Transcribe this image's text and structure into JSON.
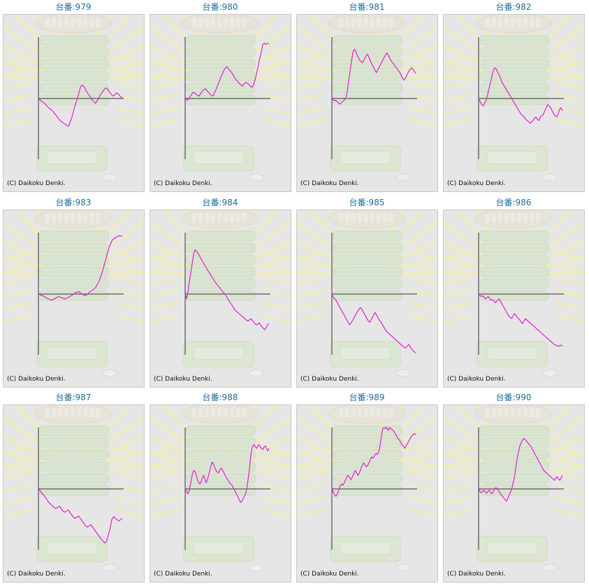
{
  "copyright": "(C) Daikoku Denki.",
  "colors": {
    "line": "#e020d0",
    "axis": "#333333",
    "title": "#1a6e9e",
    "panel_bg": "#e6e6e6"
  },
  "chart_data": [
    {
      "type": "line",
      "title": "台番:979",
      "values": [
        0,
        -2,
        -5,
        -6,
        -9,
        -12,
        -15,
        -17,
        -19,
        -22,
        -26,
        -29,
        -33,
        -36,
        -38,
        -40,
        -42,
        -44,
        -45,
        -38,
        -30,
        -20,
        -10,
        -2,
        8,
        18,
        22,
        20,
        15,
        10,
        6,
        2,
        -2,
        -5,
        -8,
        -4,
        1,
        6,
        10,
        14,
        17,
        16,
        12,
        8,
        5,
        4,
        8,
        9,
        6,
        3,
        1
      ]
    },
    {
      "type": "line",
      "title": "台番:980",
      "values": [
        0,
        -2,
        -2,
        2,
        6,
        10,
        9,
        7,
        5,
        4,
        8,
        12,
        14,
        16,
        13,
        10,
        7,
        5,
        4,
        10,
        15,
        22,
        28,
        35,
        40,
        46,
        50,
        52,
        48,
        45,
        42,
        38,
        33,
        30,
        27,
        24,
        22,
        20,
        24,
        26,
        25,
        23,
        20,
        18,
        22,
        30,
        40,
        52,
        65,
        75,
        88,
        90,
        88,
        90,
        89
      ]
    },
    {
      "type": "line",
      "title": "台番:981",
      "values": [
        0,
        -2,
        -4,
        -3,
        -5,
        -7,
        -9,
        -8,
        -6,
        -4,
        -2,
        0,
        10,
        25,
        40,
        55,
        68,
        78,
        80,
        75,
        70,
        66,
        62,
        60,
        58,
        62,
        66,
        70,
        72,
        68,
        63,
        58,
        54,
        50,
        46,
        42,
        46,
        50,
        54,
        58,
        62,
        66,
        70,
        74,
        72,
        68,
        64,
        60,
        58,
        55,
        52,
        50,
        46,
        44,
        40,
        36,
        32,
        30,
        34,
        38,
        42,
        46,
        48,
        50,
        47,
        44,
        41
      ]
    },
    {
      "type": "line",
      "title": "台番:982",
      "values": [
        0,
        -5,
        -10,
        -12,
        -8,
        -4,
        5,
        15,
        25,
        35,
        45,
        50,
        48,
        42,
        38,
        32,
        26,
        22,
        18,
        14,
        10,
        6,
        2,
        -2,
        -6,
        -10,
        -14,
        -18,
        -22,
        -26,
        -28,
        -30,
        -34,
        -36,
        -38,
        -40,
        -38,
        -36,
        -32,
        -30,
        -34,
        -36,
        -30,
        -28,
        -26,
        -20,
        -15,
        -10,
        -12,
        -15,
        -20,
        -25,
        -28,
        -30,
        -26,
        -18,
        -15,
        -20
      ]
    },
    {
      "type": "line",
      "title": "台番:983",
      "values": [
        0,
        -2,
        -5,
        -8,
        -10,
        -7,
        -4,
        -6,
        -8,
        -5,
        -2,
        2,
        4,
        0,
        -3,
        2,
        6,
        10,
        20,
        35,
        55,
        75,
        88,
        92,
        95,
        94
      ]
    },
    {
      "type": "line",
      "title": "台番:984",
      "values": [
        0,
        -8,
        5,
        20,
        35,
        50,
        65,
        72,
        70,
        66,
        63,
        58,
        54,
        50,
        46,
        42,
        38,
        35,
        31,
        27,
        24,
        20,
        17,
        14,
        11,
        8,
        5,
        2,
        0,
        -4,
        -8,
        -12,
        -15,
        -18,
        -22,
        -26,
        -28,
        -30,
        -32,
        -34,
        -36,
        -38,
        -40,
        -42,
        -44,
        -43,
        -40,
        -42,
        -45,
        -48,
        -50,
        -49,
        -47,
        -50,
        -53,
        -56,
        -58,
        -55,
        -50,
        -48
      ]
    },
    {
      "type": "line",
      "title": "台番:985",
      "values": [
        0,
        -5,
        -8,
        -10,
        -14,
        -18,
        -22,
        -26,
        -30,
        -34,
        -38,
        -42,
        -46,
        -50,
        -48,
        -44,
        -40,
        -36,
        -32,
        -28,
        -25,
        -22,
        -24,
        -28,
        -32,
        -36,
        -40,
        -44,
        -46,
        -42,
        -38,
        -34,
        -30,
        -34,
        -38,
        -42,
        -45,
        -48,
        -52,
        -56,
        -60,
        -62,
        -64,
        -66,
        -68,
        -70,
        -72,
        -74,
        -76,
        -78,
        -80,
        -82,
        -84,
        -86,
        -88,
        -86,
        -84,
        -82,
        -86,
        -90,
        -92,
        -94,
        -96
      ]
    },
    {
      "type": "line",
      "title": "台番:986",
      "values": [
        0,
        -2,
        -4,
        -3,
        -5,
        -8,
        -6,
        -4,
        -7,
        -10,
        -9,
        -11,
        -14,
        -12,
        -10,
        -8,
        -12,
        -16,
        -20,
        -24,
        -28,
        -32,
        -36,
        -38,
        -40,
        -36,
        -32,
        -34,
        -38,
        -40,
        -42,
        -46,
        -48,
        -44,
        -40,
        -42,
        -44,
        -46,
        -48,
        -50,
        -52,
        -54,
        -56,
        -58,
        -60,
        -62,
        -64,
        -66,
        -68,
        -70,
        -72,
        -74,
        -76,
        -78,
        -80,
        -82,
        -83,
        -84,
        -85,
        -84,
        -83,
        -85
      ]
    },
    {
      "type": "line",
      "title": "台番:987",
      "values": [
        0,
        -3,
        -7,
        -10,
        -14,
        -18,
        -22,
        -25,
        -28,
        -30,
        -32,
        -30,
        -28,
        -32,
        -36,
        -38,
        -36,
        -34,
        -38,
        -42,
        -46,
        -48,
        -46,
        -44,
        -48,
        -52,
        -56,
        -60,
        -62,
        -60,
        -58,
        -62,
        -66,
        -70,
        -74,
        -78,
        -82,
        -85,
        -88,
        -85,
        -75,
        -65,
        -50,
        -45,
        -48,
        -50,
        -52,
        -50,
        -48
      ]
    },
    {
      "type": "line",
      "title": "台番:988",
      "values": [
        0,
        -3,
        -8,
        -5,
        5,
        15,
        25,
        30,
        28,
        22,
        15,
        10,
        8,
        12,
        18,
        22,
        16,
        10,
        15,
        22,
        30,
        38,
        44,
        40,
        35,
        30,
        28,
        26,
        30,
        34,
        32,
        28,
        24,
        20,
        16,
        14,
        10,
        8,
        6,
        2,
        -2,
        -6,
        -10,
        -14,
        -18,
        -22,
        -20,
        -16,
        -12,
        -8,
        0,
        15,
        30,
        50,
        65,
        70,
        72,
        68,
        66,
        70,
        72,
        68,
        66,
        64,
        68,
        70,
        65,
        62,
        66
      ]
    },
    {
      "type": "line",
      "title": "台番:989",
      "values": [
        0,
        -5,
        -10,
        -12,
        -8,
        -2,
        5,
        8,
        6,
        10,
        15,
        20,
        22,
        18,
        15,
        20,
        25,
        30,
        26,
        22,
        26,
        32,
        38,
        42,
        40,
        36,
        38,
        42,
        48,
        52,
        50,
        54,
        58,
        56,
        60,
        70,
        85,
        98,
        100,
        98,
        100,
        95,
        100,
        98,
        96,
        94,
        90,
        86,
        82,
        80,
        76,
        72,
        70,
        66,
        70,
        74,
        78,
        82,
        86,
        88,
        90,
        88
      ]
    },
    {
      "type": "line",
      "title": "台番:990",
      "values": [
        0,
        -4,
        -6,
        -4,
        -2,
        -5,
        -7,
        -4,
        -2,
        -6,
        -8,
        -4,
        0,
        2,
        0,
        -3,
        -6,
        -10,
        -12,
        -15,
        -18,
        -20,
        -15,
        -10,
        -5,
        0,
        10,
        20,
        35,
        50,
        60,
        70,
        75,
        80,
        82,
        80,
        78,
        75,
        72,
        70,
        66,
        62,
        58,
        54,
        50,
        46,
        42,
        38,
        34,
        30,
        28,
        26,
        24,
        22,
        20,
        18,
        16,
        14,
        18,
        20,
        16,
        14,
        18,
        22
      ]
    }
  ]
}
